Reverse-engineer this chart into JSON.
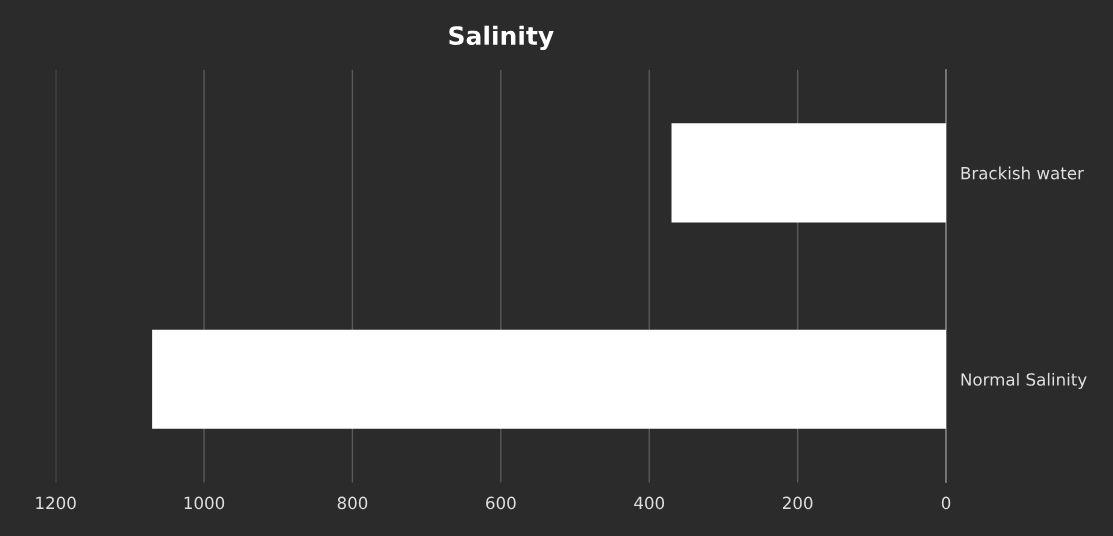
{
  "chart_data": {
    "type": "bar",
    "orientation": "horizontal",
    "title": "Salinity",
    "categories": [
      "Brackish water",
      "Normal Salinity"
    ],
    "values": [
      370,
      1070
    ],
    "color": "#ffffff",
    "xlim": [
      1200,
      0
    ],
    "xticks": [
      1200,
      1000,
      800,
      600,
      400,
      200,
      0
    ],
    "grid": "x"
  }
}
